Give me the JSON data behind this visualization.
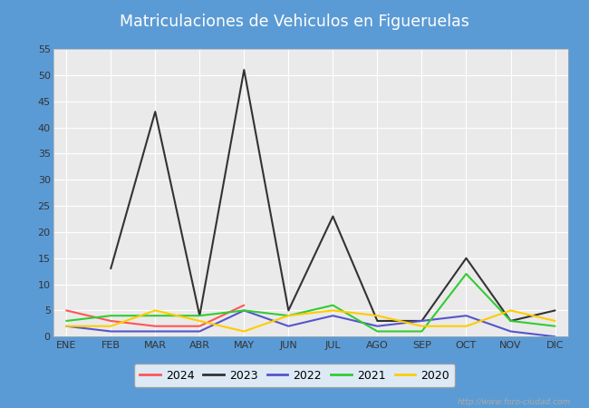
{
  "title": "Matriculaciones de Vehiculos en Figueruelas",
  "title_color": "#ffffff",
  "title_bg_color": "#5b9bd5",
  "months": [
    "ENE",
    "FEB",
    "MAR",
    "ABR",
    "MAY",
    "JUN",
    "JUL",
    "AGO",
    "SEP",
    "OCT",
    "NOV",
    "DIC"
  ],
  "series": {
    "2024": [
      5,
      3,
      2,
      2,
      6,
      null,
      null,
      null,
      null,
      null,
      null,
      null
    ],
    "2023": [
      null,
      13,
      43,
      4,
      51,
      5,
      23,
      3,
      3,
      15,
      3,
      5
    ],
    "2022": [
      2,
      1,
      1,
      1,
      5,
      2,
      4,
      2,
      3,
      4,
      1,
      0
    ],
    "2021": [
      3,
      4,
      4,
      4,
      5,
      4,
      6,
      1,
      1,
      12,
      3,
      2
    ],
    "2020": [
      2,
      2,
      5,
      3,
      1,
      4,
      5,
      4,
      2,
      2,
      5,
      3
    ]
  },
  "colors": {
    "2024": "#ff5555",
    "2023": "#333333",
    "2022": "#5555cc",
    "2021": "#33cc33",
    "2020": "#ffcc00"
  },
  "ylim": [
    0,
    55
  ],
  "yticks": [
    0,
    5,
    10,
    15,
    20,
    25,
    30,
    35,
    40,
    45,
    50,
    55
  ],
  "side_bar_color": "#5b9bd5",
  "plot_bg_color": "#eaeaea",
  "grid_color": "#ffffff",
  "outer_bg_color": "#5b9bd5",
  "watermark": "http://www.foro-ciudad.com"
}
